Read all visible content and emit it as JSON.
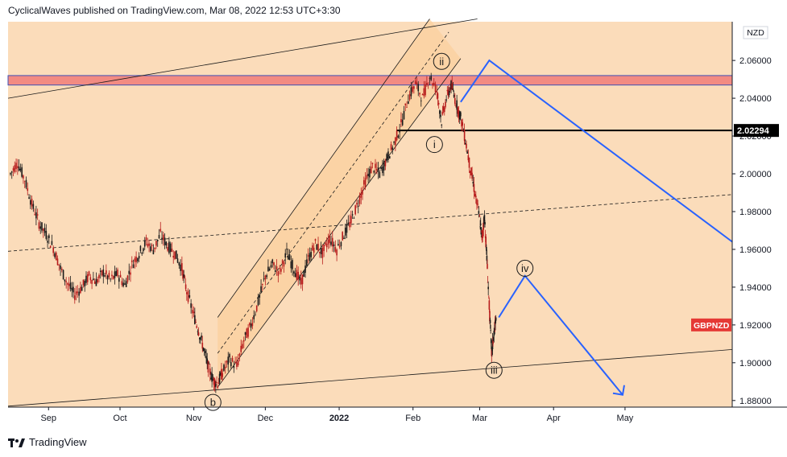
{
  "header": {
    "published_line": "CyclicalWaves published on TradingView.com, Mar 08, 2022 12:53 UTC+3:30"
  },
  "footer": {
    "brand": "TradingView"
  },
  "chart_data": {
    "type": "line",
    "symbol": "GBPNZD",
    "currency": "NZD",
    "last_price_label": "2.02294",
    "yaxis": {
      "ticks": [
        1.88,
        1.9,
        1.92,
        1.94,
        1.96,
        1.98,
        2.0,
        2.02,
        2.04,
        2.06
      ],
      "tick_labels": [
        "1.88000",
        "1.90000",
        "1.92000",
        "1.94000",
        "1.96000",
        "1.98000",
        "2.00000",
        "2.02000",
        "2.04000",
        "2.06000"
      ],
      "ylim": [
        1.8765,
        2.0805
      ]
    },
    "xaxis": {
      "tick_labels": [
        "Sep",
        "Oct",
        "Nov",
        "Dec",
        "2022",
        "Feb",
        "Mar",
        "Apr",
        "May"
      ],
      "tick_dates": [
        "2021-09-01",
        "2021-10-01",
        "2021-11-01",
        "2021-12-01",
        "2022-01-01",
        "2022-02-01",
        "2022-03-01",
        "2022-04-01",
        "2022-05-01"
      ],
      "xlim": [
        "2021-08-15",
        "2022-06-15"
      ]
    },
    "price_path": [
      [
        "2021-08-16",
        2.0
      ],
      [
        "2021-08-19",
        2.006
      ],
      [
        "2021-08-22",
        1.997
      ],
      [
        "2021-08-25",
        1.984
      ],
      [
        "2021-08-28",
        1.974
      ],
      [
        "2021-08-31",
        1.968
      ],
      [
        "2021-09-03",
        1.961
      ],
      [
        "2021-09-06",
        1.95
      ],
      [
        "2021-09-09",
        1.942
      ],
      [
        "2021-09-12",
        1.936
      ],
      [
        "2021-09-15",
        1.94
      ],
      [
        "2021-09-18",
        1.946
      ],
      [
        "2021-09-21",
        1.943
      ],
      [
        "2021-09-24",
        1.948
      ],
      [
        "2021-09-27",
        1.944
      ],
      [
        "2021-09-30",
        1.947
      ],
      [
        "2021-10-03",
        1.941
      ],
      [
        "2021-10-06",
        1.952
      ],
      [
        "2021-10-09",
        1.958
      ],
      [
        "2021-10-12",
        1.964
      ],
      [
        "2021-10-15",
        1.96
      ],
      [
        "2021-10-18",
        1.968
      ],
      [
        "2021-10-21",
        1.962
      ],
      [
        "2021-10-24",
        1.958
      ],
      [
        "2021-10-27",
        1.95
      ],
      [
        "2021-10-29",
        1.938
      ],
      [
        "2021-11-01",
        1.925
      ],
      [
        "2021-11-03",
        1.917
      ],
      [
        "2021-11-05",
        1.908
      ],
      [
        "2021-11-07",
        1.898
      ],
      [
        "2021-11-09",
        1.891
      ],
      [
        "2021-11-11",
        1.889
      ],
      [
        "2021-11-13",
        1.895
      ],
      [
        "2021-11-16",
        1.902
      ],
      [
        "2021-11-19",
        1.898
      ],
      [
        "2021-11-22",
        1.912
      ],
      [
        "2021-11-25",
        1.92
      ],
      [
        "2021-11-28",
        1.932
      ],
      [
        "2021-12-01",
        1.946
      ],
      [
        "2021-12-04",
        1.952
      ],
      [
        "2021-12-07",
        1.948
      ],
      [
        "2021-12-10",
        1.958
      ],
      [
        "2021-12-13",
        1.95
      ],
      [
        "2021-12-16",
        1.942
      ],
      [
        "2021-12-19",
        1.955
      ],
      [
        "2021-12-22",
        1.963
      ],
      [
        "2021-12-25",
        1.958
      ],
      [
        "2021-12-28",
        1.966
      ],
      [
        "2021-12-31",
        1.96
      ],
      [
        "2022-01-03",
        1.968
      ],
      [
        "2022-01-06",
        1.975
      ],
      [
        "2022-01-09",
        1.985
      ],
      [
        "2022-01-12",
        1.996
      ],
      [
        "2022-01-15",
        2.004
      ],
      [
        "2022-01-18",
        2.0
      ],
      [
        "2022-01-21",
        2.008
      ],
      [
        "2022-01-24",
        2.016
      ],
      [
        "2022-01-27",
        2.026
      ],
      [
        "2022-01-30",
        2.04
      ],
      [
        "2022-02-02",
        2.048
      ],
      [
        "2022-02-05",
        2.04
      ],
      [
        "2022-02-08",
        2.052
      ],
      [
        "2022-02-11",
        2.044
      ],
      [
        "2022-02-13",
        2.028
      ],
      [
        "2022-02-15",
        2.04
      ],
      [
        "2022-02-17",
        2.047
      ],
      [
        "2022-02-19",
        2.038
      ],
      [
        "2022-02-21",
        2.03
      ],
      [
        "2022-02-23",
        2.018
      ],
      [
        "2022-02-25",
        2.003
      ],
      [
        "2022-02-27",
        1.99
      ],
      [
        "2022-03-01",
        1.976
      ],
      [
        "2022-03-02",
        1.966
      ],
      [
        "2022-03-03",
        1.978
      ],
      [
        "2022-03-04",
        1.955
      ],
      [
        "2022-03-05",
        1.93
      ],
      [
        "2022-03-06",
        1.905
      ],
      [
        "2022-03-07",
        1.916
      ],
      [
        "2022-03-08",
        1.924
      ]
    ],
    "channels": [
      {
        "name": "outer",
        "lower": [
          [
            "2021-08-15",
            1.877
          ],
          [
            "2022-06-15",
            1.907
          ]
        ],
        "upper": [
          [
            "2021-08-15",
            2.04
          ],
          [
            "2022-02-28",
            2.082
          ]
        ]
      },
      {
        "name": "rising",
        "upper": [
          [
            "2021-11-11",
            1.924
          ],
          [
            "2022-02-08",
            2.082
          ]
        ],
        "lower": [
          [
            "2021-11-11",
            1.887
          ],
          [
            "2022-02-21",
            2.061
          ]
        ],
        "mid": [
          [
            "2021-11-11",
            1.905
          ],
          [
            "2022-02-16",
            2.075
          ]
        ]
      }
    ],
    "trend_line_dashed": [
      [
        "2021-08-15",
        1.959
      ],
      [
        "2022-06-15",
        1.989
      ]
    ],
    "resistance_zone": [
      2.047,
      2.052
    ],
    "support_line": {
      "value": 2.02294,
      "from": "2022-01-25"
    },
    "projection_upper": [
      [
        "2022-02-21",
        2.038
      ],
      [
        "2022-03-05",
        2.06
      ],
      [
        "2022-06-15",
        1.964
      ]
    ],
    "projection_lower": [
      [
        "2022-03-09",
        1.924
      ],
      [
        "2022-03-20",
        1.946
      ],
      [
        "2022-04-30",
        1.883
      ]
    ],
    "wave_labels": [
      {
        "text": "ii",
        "date": "2022-02-13",
        "value": 2.0595
      },
      {
        "text": "i",
        "date": "2022-02-10",
        "value": 2.0155
      },
      {
        "text": "iv",
        "date": "2022-03-20",
        "value": 1.95
      },
      {
        "text": "iii",
        "date": "2022-03-07",
        "value": 1.896
      },
      {
        "text": "b",
        "date": "2021-11-09",
        "value": 1.879
      }
    ],
    "colors": {
      "background": "#fbdcba",
      "channel_fill": "#fbcf9c",
      "price": "#b71c1c",
      "price_dark": "#1a1a1a",
      "projection": "#2962ff",
      "zone_fill": "#f28b82",
      "zone_border": "#3f51b5",
      "symbol_badge": "#e53935"
    }
  }
}
